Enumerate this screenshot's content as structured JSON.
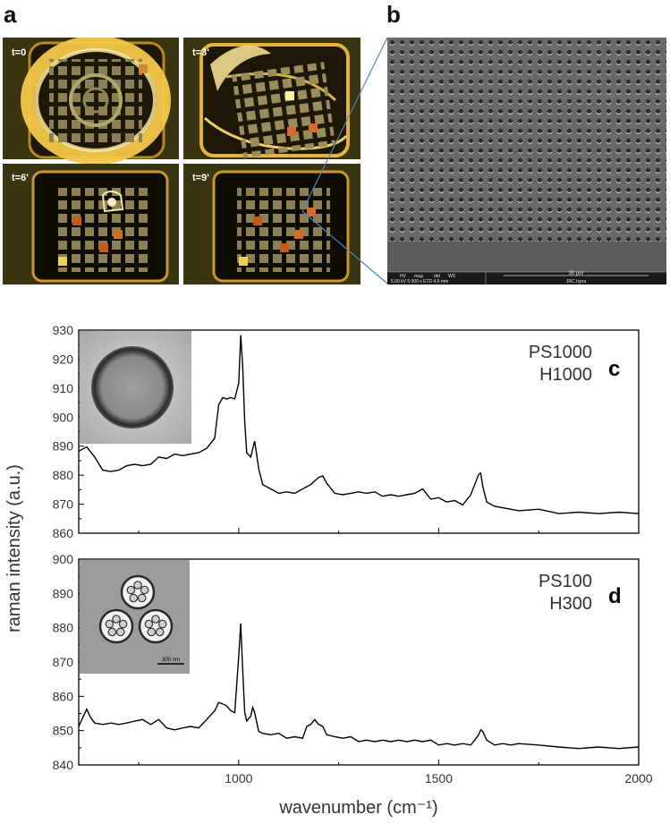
{
  "panels": {
    "a": "a",
    "b": "b",
    "c": "c",
    "d": "d"
  },
  "panel_a": {
    "frames": [
      "t=0",
      "t=3'",
      "t=6'",
      "t=9'"
    ]
  },
  "panel_b": {
    "scale_bar_label": "30 µm",
    "sem_info_header": [
      "HV",
      "mag",
      "det",
      "WD"
    ],
    "sem_info_values": "5.00 kV 5 000 x ETD 4.6 mm",
    "institution": "JRC Ispra"
  },
  "chart_data": [
    {
      "type": "line",
      "id": "c",
      "annotation": [
        "PS1000",
        "H1000"
      ],
      "xlim": [
        600,
        2000
      ],
      "ylim": [
        860,
        930
      ],
      "yticks": [
        860,
        870,
        880,
        890,
        900,
        910,
        920,
        930
      ],
      "series": [
        {
          "x": [
            600,
            620,
            640,
            660,
            680,
            700,
            720,
            740,
            760,
            780,
            800,
            820,
            840,
            860,
            880,
            900,
            920,
            940,
            950,
            960,
            970,
            980,
            990,
            1000,
            1005,
            1010,
            1015,
            1020,
            1030,
            1040,
            1050,
            1060,
            1080,
            1100,
            1120,
            1140,
            1160,
            1180,
            1200,
            1210,
            1220,
            1240,
            1260,
            1280,
            1300,
            1320,
            1340,
            1360,
            1380,
            1400,
            1420,
            1440,
            1460,
            1480,
            1500,
            1520,
            1540,
            1560,
            1580,
            1590,
            1600,
            1605,
            1610,
            1620,
            1640,
            1660,
            1680,
            1700,
            1750,
            1800,
            1850,
            1900,
            1950,
            2000
          ],
          "y": [
            888,
            890,
            886,
            882,
            881,
            882,
            883,
            884,
            883,
            884,
            886,
            886,
            887,
            887,
            887,
            888,
            889,
            893,
            904,
            907,
            906,
            907,
            906,
            912,
            928,
            918,
            898,
            888,
            886,
            892,
            882,
            877,
            875,
            874,
            874,
            874,
            875,
            877,
            879,
            880,
            877,
            874,
            873,
            874,
            874,
            874,
            874,
            873,
            873,
            873,
            873,
            874,
            875,
            872,
            872,
            871,
            871,
            870,
            873,
            877,
            880,
            881,
            876,
            871,
            869,
            869,
            868,
            868,
            868,
            867,
            867,
            867,
            867,
            867
          ]
        }
      ]
    },
    {
      "type": "line",
      "id": "d",
      "annotation": [
        "PS100",
        "H300"
      ],
      "inset_scale_label": "300 nm",
      "xlabel": "wavenumber (cm⁻¹)",
      "ylabel": "raman intensity (a.u.)",
      "xlim": [
        600,
        2000
      ],
      "ylim": [
        840,
        900
      ],
      "yticks": [
        840,
        850,
        860,
        870,
        880,
        890,
        900
      ],
      "xticks": [
        1000,
        1500,
        2000
      ],
      "series": [
        {
          "x": [
            600,
            610,
            620,
            630,
            640,
            660,
            680,
            700,
            720,
            740,
            760,
            780,
            800,
            820,
            840,
            860,
            880,
            900,
            920,
            940,
            950,
            960,
            970,
            980,
            990,
            1000,
            1005,
            1010,
            1015,
            1020,
            1030,
            1035,
            1040,
            1050,
            1060,
            1080,
            1100,
            1120,
            1140,
            1160,
            1170,
            1180,
            1190,
            1200,
            1210,
            1220,
            1240,
            1260,
            1280,
            1300,
            1320,
            1340,
            1360,
            1380,
            1400,
            1420,
            1440,
            1460,
            1480,
            1500,
            1520,
            1540,
            1560,
            1580,
            1590,
            1600,
            1605,
            1610,
            1620,
            1640,
            1660,
            1680,
            1700,
            1750,
            1800,
            1850,
            1900,
            1950,
            2000
          ],
          "y": [
            851,
            854,
            856,
            854,
            852,
            852,
            852,
            852,
            852,
            853,
            853,
            852,
            853,
            851,
            850,
            851,
            851,
            851,
            853,
            856,
            858,
            858,
            857,
            856,
            855,
            872,
            881,
            868,
            855,
            853,
            854,
            857,
            855,
            850,
            849,
            849,
            849,
            848,
            848,
            848,
            851,
            852,
            853,
            852,
            851,
            849,
            848,
            848,
            848,
            847,
            847,
            847,
            847,
            847,
            847,
            847,
            847,
            847,
            847,
            846,
            846,
            846,
            846,
            846,
            847,
            849,
            850,
            850,
            847,
            846,
            846,
            846,
            846,
            846,
            845,
            845,
            845,
            845,
            845
          ]
        }
      ]
    }
  ]
}
